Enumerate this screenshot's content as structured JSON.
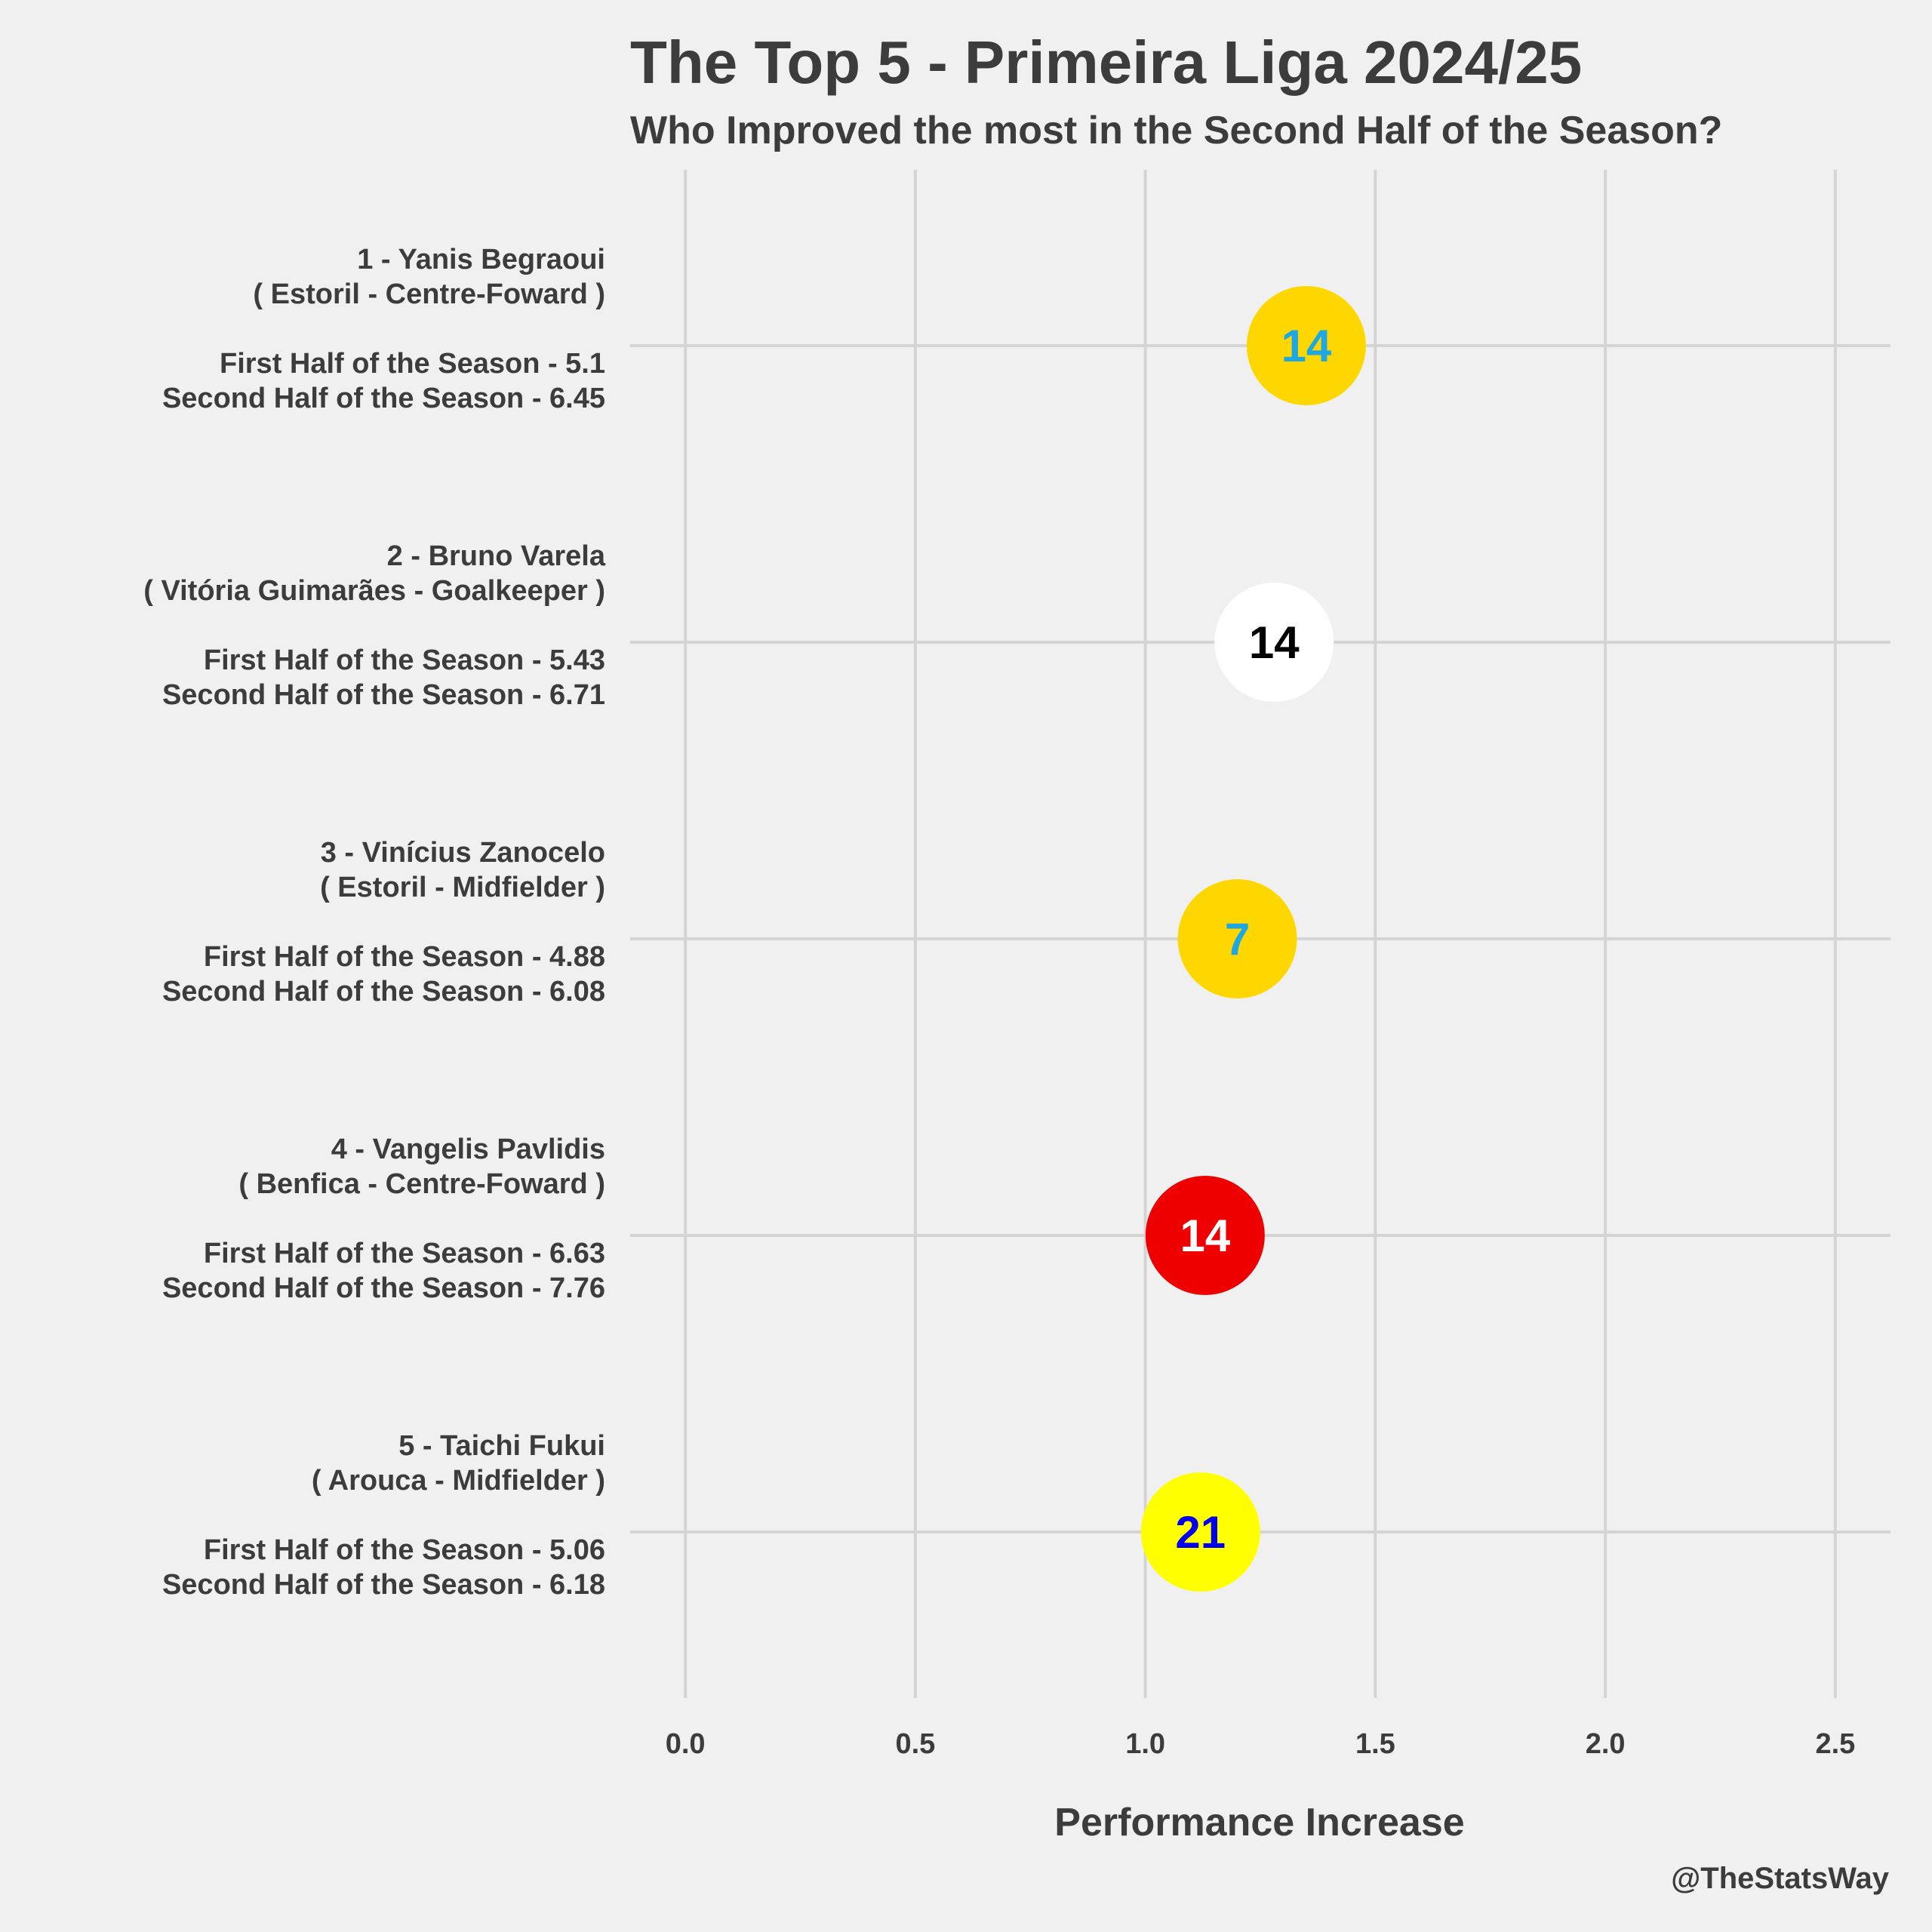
{
  "chart_data": {
    "type": "scatter",
    "title": "The Top 5 - Primeira Liga 2024/25",
    "subtitle": "Who Improved the most in the Second Half of the Season?",
    "xlabel": "Performance Increase",
    "credit": "@TheStatsWay",
    "xlim": [
      -0.12,
      2.62
    ],
    "xticks": [
      "0.0",
      "0.5",
      "1.0",
      "1.5",
      "2.0",
      "2.5"
    ],
    "xtick_values": [
      0.0,
      0.5,
      1.0,
      1.5,
      2.0,
      2.5
    ],
    "grid": true,
    "points": [
      {
        "name_line": "1 - Yanis Begraoui",
        "club_line": "( Estoril - Centre-Foward )",
        "first_line": "First Half of the Season - 5.1",
        "second_line": "Second Half of the Season - 6.45",
        "x": 1.35,
        "label": "14",
        "fill": "#FFD700",
        "text_color": "#1EA7E1"
      },
      {
        "name_line": "2 - Bruno Varela",
        "club_line": "( Vitória Guimarães - Goalkeeper )",
        "first_line": "First Half of the Season - 5.43",
        "second_line": "Second Half of the Season - 6.71",
        "x": 1.28,
        "label": "14",
        "fill": "#FFFFFF",
        "text_color": "#000000"
      },
      {
        "name_line": "3 - Vinícius Zanocelo",
        "club_line": "( Estoril - Midfielder )",
        "first_line": "First Half of the Season - 4.88",
        "second_line": "Second Half of the Season - 6.08",
        "x": 1.2,
        "label": "7",
        "fill": "#FFD700",
        "text_color": "#1EA7E1"
      },
      {
        "name_line": "4 - Vangelis Pavlidis",
        "club_line": "( Benfica - Centre-Foward )",
        "first_line": "First Half of the Season - 6.63",
        "second_line": "Second Half of the Season - 7.76",
        "x": 1.13,
        "label": "14",
        "fill": "#EE0000",
        "text_color": "#FFFFFF"
      },
      {
        "name_line": "5 - Taichi Fukui",
        "club_line": "( Arouca - Midfielder )",
        "first_line": "First Half of the Season - 5.06",
        "second_line": "Second Half of the Season - 6.18",
        "x": 1.12,
        "label": "21",
        "fill": "#FFFF00",
        "text_color": "#0000EE"
      }
    ]
  }
}
